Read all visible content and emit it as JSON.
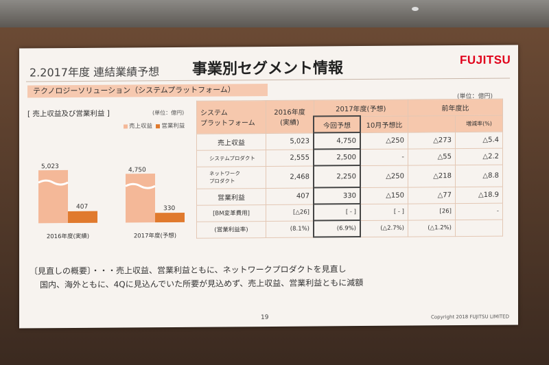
{
  "slide": {
    "title_left": "2.2017年度 連結業績予想",
    "title_main": "事業別セグメント情報",
    "logo": "FUJITSU",
    "segment_label": "テクノロジーソリューション（システムプラットフォーム）",
    "unit_top": "(単位：億円)",
    "page_number": "19",
    "copyright": "Copyright 2018 FUJITSU LIMITED"
  },
  "chart_panel": {
    "title": "[ 売上収益及び営業利益 ]",
    "unit": "(単位：億円)",
    "legend_revenue": "売上収益",
    "legend_profit": "営業利益"
  },
  "chart_data": {
    "type": "bar",
    "categories": [
      "2016年度(実績)",
      "2017年度(予想)"
    ],
    "series": [
      {
        "name": "売上収益",
        "values": [
          5023,
          4750
        ],
        "labels": [
          "5,023",
          "4,750"
        ],
        "color": "#f4b898"
      },
      {
        "name": "営業利益",
        "values": [
          407,
          330
        ],
        "labels": [
          "407",
          "330"
        ],
        "color": "#e07a2e"
      }
    ],
    "broken_axis": true
  },
  "table": {
    "header": {
      "col0": "システム\nプラットフォーム",
      "col1": "2016年度\n(実績)",
      "col2_group": "2017年度(予想)",
      "col2": "今回予想",
      "col3": "10月予想比",
      "col4_group": "前年度比",
      "col5": "増減率(%)"
    },
    "rows": [
      {
        "label": "売上収益",
        "v2016": "5,023",
        "forecast": "4,750",
        "vs_oct": "△250",
        "yoy": "△273",
        "rate": "△5.4"
      },
      {
        "label": "システムプロダクト",
        "v2016": "2,555",
        "forecast": "2,500",
        "vs_oct": "-",
        "yoy": "△55",
        "rate": "△2.2"
      },
      {
        "label": "ネットワーク\nプロダクト",
        "v2016": "2,468",
        "forecast": "2,250",
        "vs_oct": "△250",
        "yoy": "△218",
        "rate": "△8.8"
      },
      {
        "label": "営業利益",
        "v2016": "407",
        "forecast": "330",
        "vs_oct": "△150",
        "yoy": "△77",
        "rate": "△18.9"
      },
      {
        "label": "[BM変革費用]",
        "v2016": "[△26]",
        "forecast": "[ - ]",
        "vs_oct": "[ - ]",
        "yoy": "[26]",
        "rate": "-"
      },
      {
        "label": "(営業利益率)",
        "v2016": "(8.1%)",
        "forecast": "(6.9%)",
        "vs_oct": "(△2.7%)",
        "yoy": "(△1.2%)",
        "rate": ""
      }
    ]
  },
  "notes": {
    "line1": "〔見直しの概要〕・・・売上収益、営業利益ともに、ネットワークプロダクトを見直し",
    "line2": "国内、海外ともに、4Qに見込んでいた所要が見込めず、売上収益、営業利益ともに減額"
  }
}
